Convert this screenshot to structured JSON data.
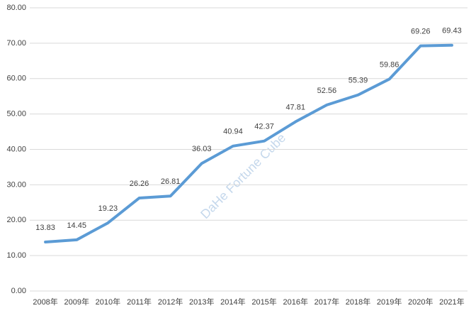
{
  "chart_data": {
    "type": "line",
    "categories": [
      "2008年",
      "2009年",
      "2010年",
      "2011年",
      "2012年",
      "2013年",
      "2014年",
      "2015年",
      "2016年",
      "2017年",
      "2018年",
      "2019年",
      "2020年",
      "2021年"
    ],
    "series": [
      {
        "color": "#5b9bd5",
        "values": [
          13.83,
          14.45,
          19.23,
          26.26,
          26.81,
          36.03,
          40.94,
          42.37,
          47.81,
          52.56,
          55.39,
          59.86,
          69.26,
          69.43
        ]
      }
    ],
    "ylim": [
      0,
      80
    ],
    "yticks": [
      {
        "value": 0,
        "label": "0.00"
      },
      {
        "value": 10,
        "label": "10.00"
      },
      {
        "value": 20,
        "label": "20.00"
      },
      {
        "value": 30,
        "label": "30.00"
      },
      {
        "value": 40,
        "label": "40.00"
      },
      {
        "value": 50,
        "label": "50.00"
      },
      {
        "value": 60,
        "label": "60.00"
      },
      {
        "value": 70,
        "label": "70.00"
      },
      {
        "value": 80,
        "label": "80.00"
      }
    ],
    "grid": true,
    "watermark": "DaHe Fortune Cube"
  }
}
